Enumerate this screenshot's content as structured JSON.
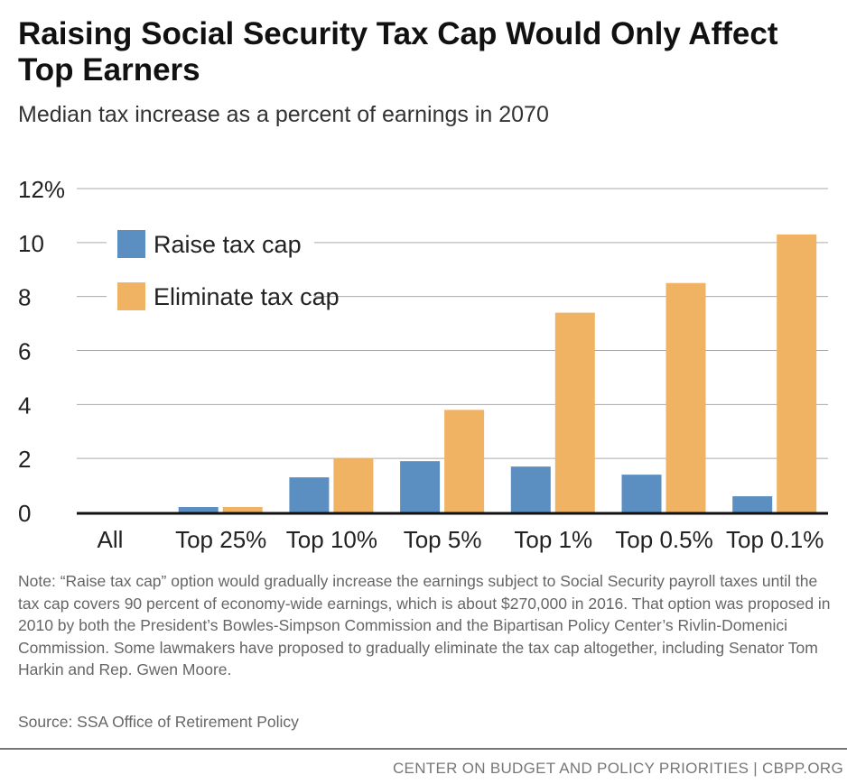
{
  "title": "Raising Social Security Tax Cap Would Only Affect Top Earners",
  "subtitle": "Median tax increase as a percent of earnings in 2070",
  "chart_data": {
    "type": "bar",
    "categories": [
      "All",
      "Top 25%",
      "Top 10%",
      "Top 5%",
      "Top 1%",
      "Top 0.5%",
      "Top 0.1%"
    ],
    "series": [
      {
        "name": "Raise tax cap",
        "color": "#5b8fc1",
        "values": [
          0,
          0.2,
          1.3,
          1.9,
          1.7,
          1.4,
          0.6
        ]
      },
      {
        "name": "Eliminate tax cap",
        "color": "#f0b263",
        "values": [
          0,
          0.2,
          2.0,
          3.8,
          7.4,
          8.5,
          10.3
        ]
      }
    ],
    "ylim": [
      0,
      12
    ],
    "yticks": [
      0,
      2,
      4,
      6,
      8,
      10,
      12
    ],
    "ytick_labels": [
      "0",
      "2",
      "4",
      "6",
      "8",
      "10",
      "12%"
    ],
    "grid": true,
    "legend_placement": "top-left"
  },
  "note": "Note: “Raise tax cap” option would gradually increase the earnings subject to Social Security payroll taxes until the tax cap covers 90 percent of economy-wide earnings, which is about $270,000 in 2016.  That option was proposed in 2010 by both the President’s Bowles-Simpson Commission and the Bipartisan Policy Center’s Rivlin-Domenici Commission. Some lawmakers have proposed to gradually eliminate the tax cap altogether, including Senator Tom Harkin and Rep. Gwen Moore.",
  "source": "Source: SSA Office of Retirement Policy",
  "footer": "CENTER ON BUDGET AND POLICY PRIORITIES | CBPP.ORG"
}
